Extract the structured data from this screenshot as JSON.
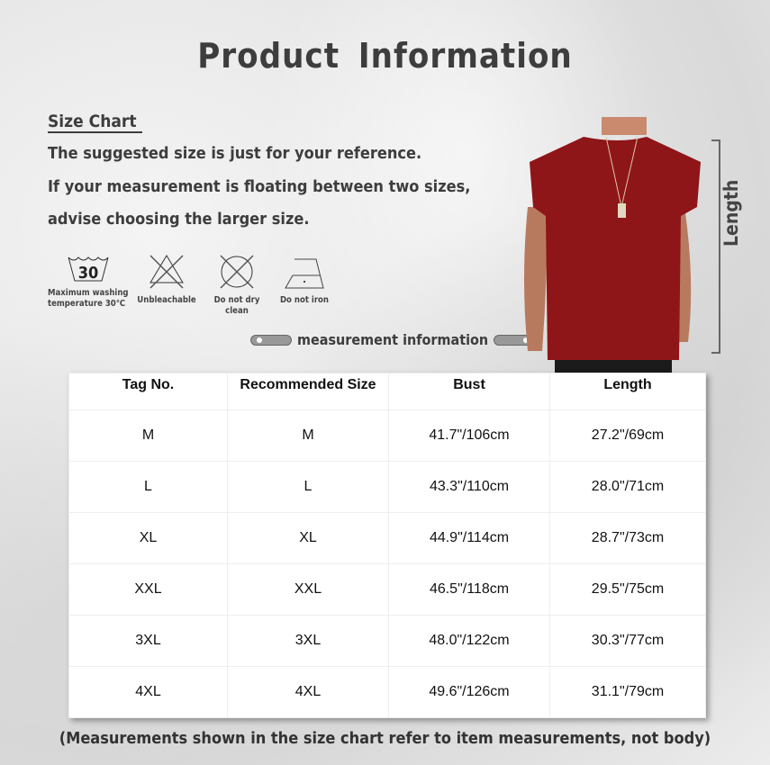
{
  "title": "Product  Information",
  "size_chart_heading": "Size Chart",
  "lines": [
    "The suggested size is just for your reference.",
    "If your measurement is floating between two sizes,",
    "advise choosing the larger size."
  ],
  "care": [
    {
      "icon": "wash-30-icon",
      "temp": "30",
      "label1": "Maximum washing",
      "label2": "temperature 30℃"
    },
    {
      "icon": "no-bleach-icon",
      "label1": "Unbleachable"
    },
    {
      "icon": "no-dry-clean-icon",
      "label1": "Do not dry clean"
    },
    {
      "icon": "no-iron-icon",
      "label1": "Do not iron"
    }
  ],
  "measurement_label": "measurement  information",
  "length_label": "Length",
  "shirt_color": "#8e1518",
  "table": {
    "headers": [
      "Tag No.",
      "Recommended Size",
      "Bust",
      "Length"
    ],
    "rows": [
      [
        "M",
        "M",
        "41.7\"/106cm",
        "27.2\"/69cm"
      ],
      [
        "L",
        "L",
        "43.3\"/110cm",
        "28.0\"/71cm"
      ],
      [
        "XL",
        "XL",
        "44.9\"/114cm",
        "28.7\"/73cm"
      ],
      [
        "XXL",
        "XXL",
        "46.5\"/118cm",
        "29.5\"/75cm"
      ],
      [
        "3XL",
        "3XL",
        "48.0\"/122cm",
        "30.3\"/77cm"
      ],
      [
        "4XL",
        "4XL",
        "49.6\"/126cm",
        "31.1\"/79cm"
      ]
    ]
  },
  "note": "(Measurements shown in the size chart refer to item measurements, not body)"
}
